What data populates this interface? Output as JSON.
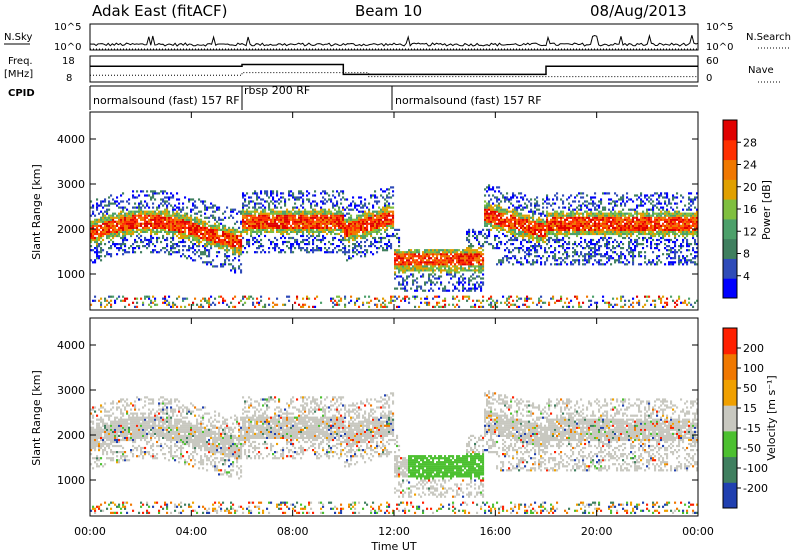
{
  "header": {
    "station": "Adak East (fitACF)",
    "beam": "Beam 10",
    "date": "08/Aug/2013"
  },
  "top_panels": {
    "nsky_label": "N.Sky",
    "nsky_ticks": [
      "10^5",
      "10^0"
    ],
    "nsky_right_ticks": [
      "10^5",
      "10^0"
    ],
    "nsearch_label": "N.Search",
    "freq_label": "Freq.",
    "freq_unit": "[MHz]",
    "freq_ticks": [
      "18",
      "8"
    ],
    "nave_ticks": [
      "60",
      "0"
    ],
    "nave_label": "Nave",
    "cpid_label": "CPID",
    "cpid_segments": [
      {
        "label": "normalsound (fast) 157 RF",
        "start": 0,
        "end": 6
      },
      {
        "label": "rbsp 200 RF",
        "start": 6,
        "end": 12
      },
      {
        "label": "normalsound (fast) 157 RF",
        "start": 12,
        "end": 24
      }
    ]
  },
  "colors": {
    "power": [
      "#0000ff",
      "#2f4bb8",
      "#3f7f5f",
      "#4ca06a",
      "#7fbf3f",
      "#e0a000",
      "#f07800",
      "#ff3000",
      "#e00000"
    ],
    "velocity": [
      "#2040b0",
      "#3f7f5f",
      "#4cc030",
      "#c8c8c0",
      "#f0a000",
      "#f07800",
      "#ff2000"
    ]
  },
  "chart_data": [
    {
      "type": "heatmap",
      "name": "power",
      "ylabel": "Slant Range [km]",
      "yticks": [
        1000,
        2000,
        3000,
        4000
      ],
      "ylim": [
        200,
        4600
      ],
      "xlim": [
        0,
        24
      ],
      "colorbar_label": "Power [dB]",
      "colorbar_ticks": [
        4,
        8,
        12,
        16,
        20,
        24,
        28
      ],
      "colorbar_range": [
        0,
        32
      ]
    },
    {
      "type": "heatmap",
      "name": "velocity",
      "ylabel": "Slant Range [km]",
      "yticks": [
        1000,
        2000,
        3000,
        4000
      ],
      "ylim": [
        200,
        4600
      ],
      "xlim": [
        0,
        24
      ],
      "colorbar_label": "Velocity [m s⁻¹]",
      "colorbar_ticks": [
        200,
        100,
        50,
        15,
        -15,
        -50,
        -100,
        -200
      ]
    }
  ],
  "xaxis": {
    "label": "Time UT",
    "ticks": [
      "00:00",
      "04:00",
      "08:00",
      "12:00",
      "16:00",
      "20:00",
      "00:00"
    ],
    "tick_hours": [
      0,
      4,
      8,
      12,
      16,
      20,
      24
    ]
  }
}
